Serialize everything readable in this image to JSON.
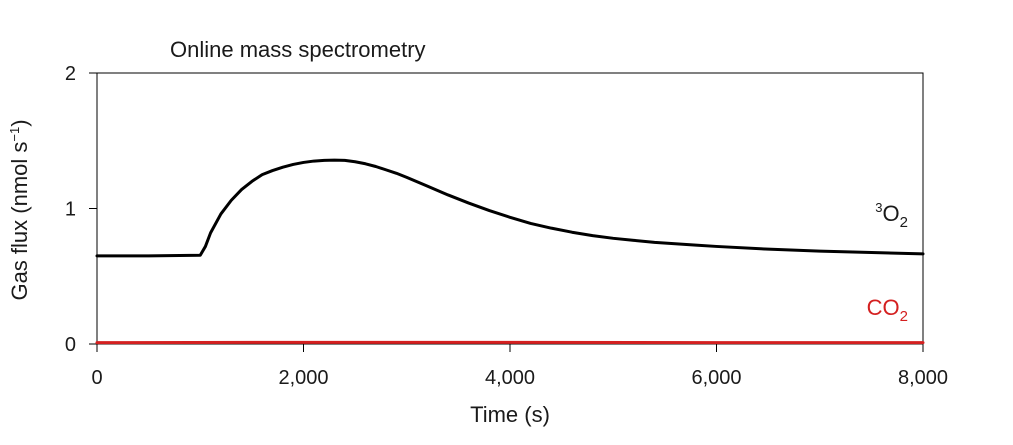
{
  "chart_data": {
    "type": "line",
    "title": "Online mass spectrometry",
    "xlabel": "Time (s)",
    "ylabel": {
      "prefix": "Gas flux (nmol s",
      "sup": "−1",
      "suffix": ")"
    },
    "xlim": [
      0,
      8000
    ],
    "ylim": [
      0,
      2
    ],
    "x_ticks": [
      0,
      2000,
      4000,
      6000,
      8000
    ],
    "x_tick_labels": [
      "0",
      "2,000",
      "4,000",
      "6,000",
      "8,000"
    ],
    "y_ticks": [
      0,
      1,
      2
    ],
    "y_tick_labels": [
      "0",
      "1",
      "2"
    ],
    "grid": false,
    "legend": "none (inline series labels at right)",
    "series": [
      {
        "label_sup": "3",
        "label_main": "O",
        "label_sub": "2",
        "color": "#000000",
        "x": [
          0,
          500,
          1000,
          1050,
          1100,
          1200,
          1300,
          1400,
          1500,
          1600,
          1700,
          1800,
          1900,
          2000,
          2100,
          2200,
          2300,
          2400,
          2500,
          2600,
          2700,
          2800,
          2900,
          3000,
          3200,
          3400,
          3600,
          3800,
          4000,
          4200,
          4400,
          4600,
          4800,
          5000,
          5200,
          5400,
          5600,
          5800,
          6000,
          6500,
          7000,
          7500,
          8000
        ],
        "y": [
          0.65,
          0.65,
          0.655,
          0.72,
          0.82,
          0.96,
          1.06,
          1.14,
          1.2,
          1.25,
          1.28,
          1.305,
          1.325,
          1.34,
          1.35,
          1.355,
          1.357,
          1.355,
          1.345,
          1.33,
          1.31,
          1.285,
          1.26,
          1.23,
          1.165,
          1.1,
          1.04,
          0.985,
          0.935,
          0.89,
          0.855,
          0.825,
          0.8,
          0.78,
          0.765,
          0.75,
          0.74,
          0.73,
          0.72,
          0.7,
          0.685,
          0.675,
          0.665
        ]
      },
      {
        "label_main": "CO",
        "label_sub": "2",
        "color": "#d42020",
        "x": [
          0,
          2000,
          4000,
          6000,
          8000
        ],
        "y": [
          0.01,
          0.012,
          0.012,
          0.01,
          0.01
        ]
      }
    ]
  }
}
